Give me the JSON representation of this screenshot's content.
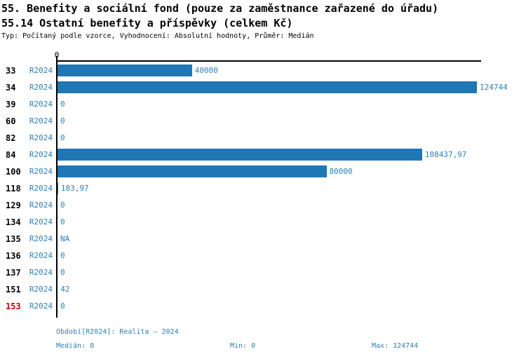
{
  "header": {
    "title_line1": "55. Benefity a sociální fond (pouze za zaměstnance zařazené do úřadu)",
    "title_line2": "55.14 Ostatní benefity a příspěvky (celkem Kč)",
    "subtitle": "Typ: Počítaný podle vzorce, Vyhodnocení: Absolutní hodnoty, Průměr: Medián"
  },
  "chart_data": {
    "type": "bar",
    "orientation": "horizontal",
    "axis_origin_tick_label": "0",
    "xlim": [
      0,
      124744
    ],
    "grid": false,
    "series_period_label": "R2024",
    "colors": {
      "bar": "#2176b4",
      "blue_text": "#2c7fb8",
      "highlight_red": "#cc0000",
      "axis": "#000000"
    },
    "rows": [
      {
        "id": "33",
        "period": "R2024",
        "value": 40000,
        "value_label": "40000",
        "highlight": false
      },
      {
        "id": "34",
        "period": "R2024",
        "value": 124744,
        "value_label": "124744",
        "highlight": false
      },
      {
        "id": "39",
        "period": "R2024",
        "value": 0,
        "value_label": "0",
        "highlight": false
      },
      {
        "id": "60",
        "period": "R2024",
        "value": 0,
        "value_label": "0",
        "highlight": false
      },
      {
        "id": "82",
        "period": "R2024",
        "value": 0,
        "value_label": "0",
        "highlight": false
      },
      {
        "id": "84",
        "period": "R2024",
        "value": 108437.97,
        "value_label": "108437,97",
        "highlight": false
      },
      {
        "id": "100",
        "period": "R2024",
        "value": 80000,
        "value_label": "80000",
        "highlight": false
      },
      {
        "id": "118",
        "period": "R2024",
        "value": 183.97,
        "value_label": "183,97",
        "highlight": false
      },
      {
        "id": "129",
        "period": "R2024",
        "value": 0,
        "value_label": "0",
        "highlight": false
      },
      {
        "id": "134",
        "period": "R2024",
        "value": 0,
        "value_label": "0",
        "highlight": false
      },
      {
        "id": "135",
        "period": "R2024",
        "value": null,
        "value_label": "NA",
        "highlight": false
      },
      {
        "id": "136",
        "period": "R2024",
        "value": 0,
        "value_label": "0",
        "highlight": false
      },
      {
        "id": "137",
        "period": "R2024",
        "value": 0,
        "value_label": "0",
        "highlight": false
      },
      {
        "id": "151",
        "period": "R2024",
        "value": 42,
        "value_label": "42",
        "highlight": false
      },
      {
        "id": "153",
        "period": "R2024",
        "value": 0,
        "value_label": "0",
        "highlight": true
      }
    ]
  },
  "footer": {
    "period_label": "Období[R2024]: Realita – 2024",
    "median_label": "Medián: 0",
    "min_label": "Min: 0",
    "max_label": "Max: 124744"
  }
}
